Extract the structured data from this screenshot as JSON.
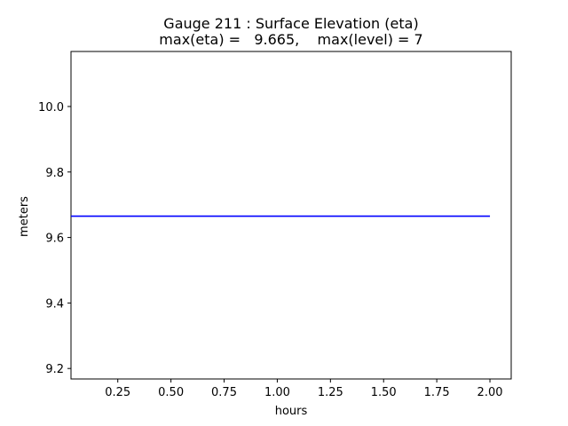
{
  "chart_data": {
    "type": "line",
    "title": "Gauge 211 : Surface Elevation (eta)",
    "subtitle": "max(eta) =   9.665,    max(level) = 7",
    "xlabel": "hours",
    "ylabel": "meters",
    "xlim": [
      0.03,
      2.1
    ],
    "ylim": [
      9.168,
      10.168
    ],
    "xticks": [
      "0.25",
      "0.50",
      "0.75",
      "1.00",
      "1.25",
      "1.50",
      "1.75",
      "2.00"
    ],
    "yticks": [
      "9.2",
      "9.4",
      "9.6",
      "9.8",
      "10.0"
    ],
    "grid": false,
    "series": [
      {
        "color": "#0000ff",
        "x": [
          0.03,
          2.0
        ],
        "y": [
          9.665,
          9.665
        ]
      }
    ]
  }
}
